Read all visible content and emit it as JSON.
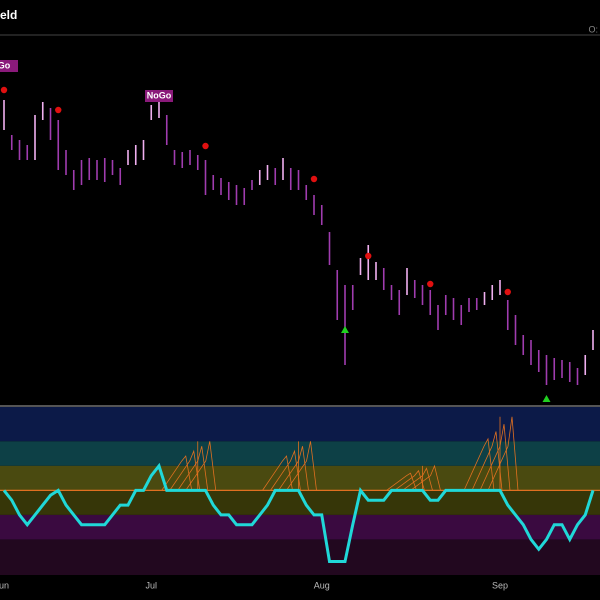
{
  "chart_data": [
    {
      "type": "ohlc",
      "title": "eld",
      "corner_text": "O:",
      "ylim": [
        0,
        370
      ],
      "x_labels": [
        {
          "index": 0,
          "label": "un"
        },
        {
          "index": 19,
          "label": "Jul"
        },
        {
          "index": 41,
          "label": "Aug"
        },
        {
          "index": 64,
          "label": "Sep"
        }
      ],
      "high": [
        305,
        270,
        265,
        260,
        290,
        303,
        297,
        285,
        255,
        235,
        245,
        247,
        245,
        247,
        245,
        237,
        255,
        260,
        265,
        300,
        305,
        290,
        255,
        253,
        255,
        250,
        245,
        230,
        227,
        223,
        220,
        217,
        225,
        235,
        240,
        237,
        247,
        237,
        235,
        220,
        210,
        200,
        173,
        135,
        120,
        120,
        147,
        160,
        143,
        137,
        120,
        115,
        137,
        125,
        120,
        115,
        100,
        110,
        107,
        100,
        107,
        107,
        113,
        120,
        125,
        105,
        90,
        70,
        65,
        55,
        50,
        47,
        45,
        43,
        37,
        50,
        75
      ],
      "low": [
        275,
        255,
        245,
        245,
        245,
        285,
        265,
        235,
        230,
        215,
        220,
        225,
        225,
        223,
        230,
        220,
        240,
        240,
        245,
        285,
        287,
        260,
        240,
        237,
        240,
        235,
        210,
        215,
        210,
        205,
        200,
        200,
        215,
        220,
        225,
        220,
        225,
        215,
        215,
        205,
        190,
        180,
        140,
        85,
        40,
        95,
        130,
        125,
        125,
        115,
        105,
        90,
        110,
        107,
        100,
        90,
        75,
        90,
        85,
        80,
        93,
        95,
        100,
        105,
        110,
        75,
        60,
        50,
        40,
        33,
        20,
        25,
        27,
        23,
        20,
        30,
        55
      ],
      "colors": [
        "#f0b0f0",
        "#a03cb0",
        "#a03cb0",
        "#a03cb0",
        "#f0b0f0",
        "#f0b0f0",
        "#a03cb0",
        "#a03cb0",
        "#a03cb0",
        "#a03cb0",
        "#a03cb0",
        "#a03cb0",
        "#a03cb0",
        "#a03cb0",
        "#a03cb0",
        "#a03cb0",
        "#f0b0f0",
        "#f0b0f0",
        "#f0b0f0",
        "#f0b0f0",
        "#f0b0f0",
        "#a03cb0",
        "#a03cb0",
        "#a03cb0",
        "#a03cb0",
        "#a03cb0",
        "#a03cb0",
        "#a03cb0",
        "#a03cb0",
        "#a03cb0",
        "#a03cb0",
        "#a03cb0",
        "#a03cb0",
        "#f0b0f0",
        "#f0b0f0",
        "#a03cb0",
        "#f0b0f0",
        "#a03cb0",
        "#a03cb0",
        "#a03cb0",
        "#a03cb0",
        "#a03cb0",
        "#a03cb0",
        "#a03cb0",
        "#a03cb0",
        "#a03cb0",
        "#f0b0f0",
        "#f0b0f0",
        "#f0b0f0",
        "#a03cb0",
        "#a03cb0",
        "#a03cb0",
        "#f0b0f0",
        "#a03cb0",
        "#a03cb0",
        "#a03cb0",
        "#a03cb0",
        "#a03cb0",
        "#a03cb0",
        "#a03cb0",
        "#a03cb0",
        "#a03cb0",
        "#f0b0f0",
        "#f0b0f0",
        "#f0b0f0",
        "#a03cb0",
        "#a03cb0",
        "#a03cb0",
        "#a03cb0",
        "#a03cb0",
        "#a03cb0",
        "#a03cb0",
        "#a03cb0",
        "#a03cb0",
        "#a03cb0",
        "#f0b0f0",
        "#f0b0f0"
      ],
      "dots": {
        "color": "#e01010",
        "index": [
          0,
          7,
          26,
          40,
          47,
          55,
          65
        ],
        "values": [
          315,
          295,
          259,
          226,
          149,
          121,
          113
        ]
      },
      "triangles": {
        "color": "#20d020",
        "index": [
          44,
          70
        ],
        "values": [
          75,
          6
        ]
      },
      "labels": [
        {
          "text": "Go",
          "index": 0,
          "value": 339
        },
        {
          "text": "NoGo",
          "index": 20,
          "value": 309
        }
      ]
    },
    {
      "type": "line",
      "color": "#20d8d8",
      "zero_color": "#e07020",
      "ylim": [
        -3.45,
        3.4
      ],
      "bands": [
        {
          "from": 2,
          "to": 3.4,
          "color": "#0c1a48"
        },
        {
          "from": 1,
          "to": 2,
          "color": "#0d4046"
        },
        {
          "from": 0,
          "to": 1,
          "color": "#4a4a10"
        },
        {
          "from": -1,
          "to": 0,
          "color": "#363608"
        },
        {
          "from": -2,
          "to": -1,
          "color": "#3a0a40"
        },
        {
          "from": -3.45,
          "to": -2,
          "color": "#22081f"
        }
      ],
      "spikes": {
        "index": [
          25,
          38,
          54,
          64
        ],
        "values": [
          2,
          2,
          1,
          3
        ]
      },
      "values": [
        0,
        -0.4,
        -1,
        -1.4,
        -1,
        -0.6,
        -0.2,
        0,
        -0.6,
        -1,
        -1.4,
        -1.4,
        -1.4,
        -1.4,
        -1,
        -0.6,
        -0.6,
        0,
        0,
        0.6,
        1,
        0,
        0,
        0,
        0,
        0,
        0,
        -0.6,
        -1,
        -1,
        -1.4,
        -1.4,
        -1.4,
        -1,
        -0.6,
        0,
        0,
        0,
        0,
        -0.6,
        -1,
        -1,
        -2.9,
        -2.9,
        -2.9,
        -1.4,
        0,
        -0.4,
        -0.4,
        -0.4,
        0,
        0,
        0,
        0,
        0,
        -0.4,
        -0.4,
        0,
        0,
        0,
        0,
        0,
        0,
        0,
        0,
        -0.6,
        -1,
        -1.4,
        -2,
        -2.4,
        -2,
        -1.4,
        -1.4,
        -2,
        -1.4,
        -1,
        0
      ]
    }
  ]
}
